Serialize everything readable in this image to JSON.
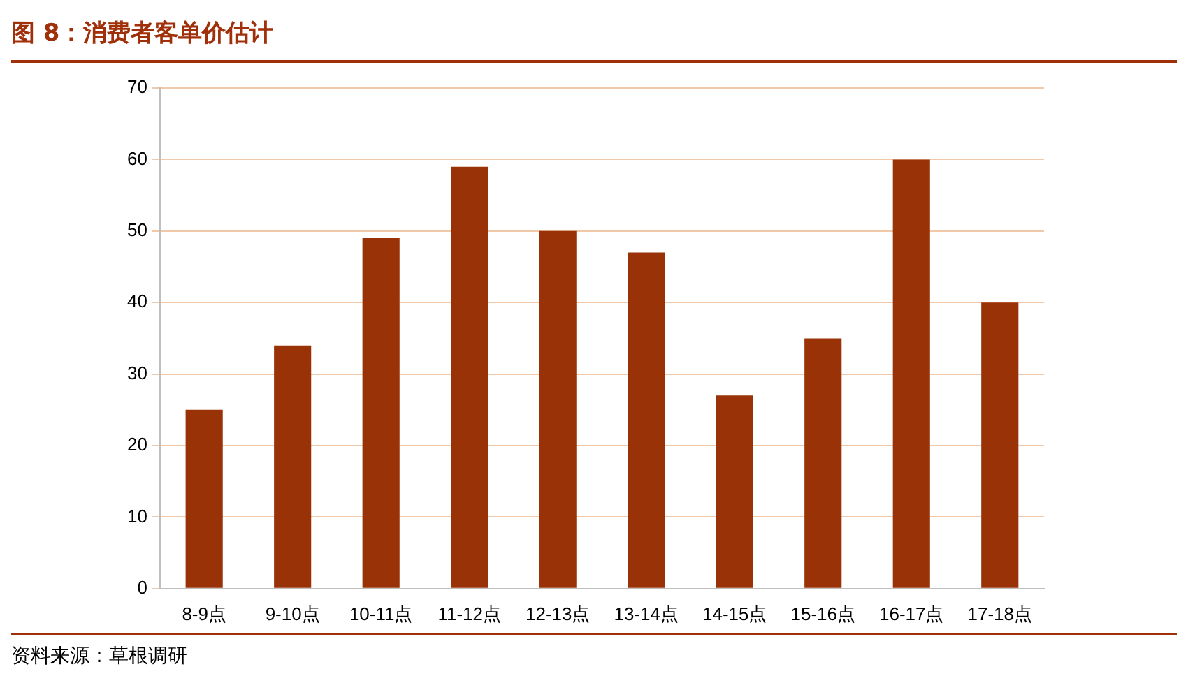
{
  "chart_data": {
    "type": "bar",
    "title": "图 8：消费者客单价估计",
    "categories": [
      "8-9点",
      "9-10点",
      "10-11点",
      "11-12点",
      "12-13点",
      "13-14点",
      "14-15点",
      "15-16点",
      "16-17点",
      "17-18点"
    ],
    "values": [
      25,
      34,
      49,
      59,
      50,
      47,
      27,
      35,
      60,
      40
    ],
    "color": "#9a3208",
    "ylim": [
      0,
      70
    ],
    "yticks": [
      0,
      10,
      20,
      30,
      40,
      50,
      60,
      70
    ],
    "grid": "y",
    "legend": false,
    "annotations": [
      "资料来源：草根调研"
    ]
  }
}
